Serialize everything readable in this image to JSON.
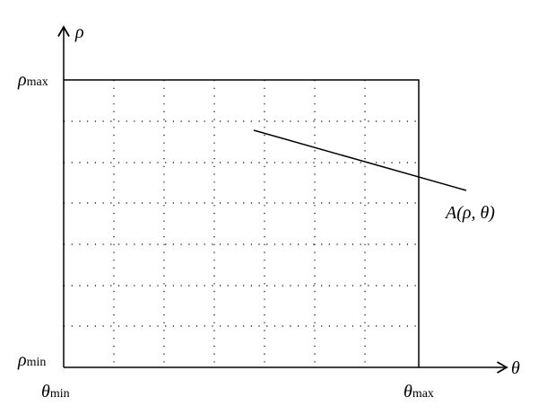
{
  "axes": {
    "vertical": "ρ",
    "horizontal": "θ"
  },
  "bounds": {
    "rho_max": {
      "symbol": "ρ",
      "subscript": "max"
    },
    "rho_min": {
      "symbol": "ρ",
      "subscript": "min"
    },
    "theta_min": {
      "symbol": "θ",
      "subscript": "min"
    },
    "theta_max": {
      "symbol": "θ",
      "subscript": "max"
    }
  },
  "line_label": "A(ρ, θ)"
}
